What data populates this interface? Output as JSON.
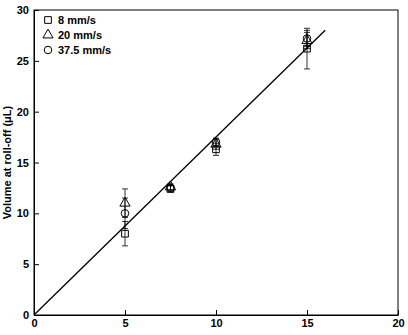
{
  "chart_data": {
    "type": "scatter",
    "y_label": "Volume at roll-off (μL)",
    "xlim": [
      0,
      20
    ],
    "xticks": [
      0,
      5,
      10,
      15,
      20
    ],
    "ylim": [
      0,
      30
    ],
    "yticks": [
      0,
      5,
      10,
      15,
      20,
      25,
      30
    ],
    "legend": "top-left",
    "series": [
      {
        "name": "8 mm/s",
        "color": "#000000",
        "marker": "square",
        "x": [
          5,
          7.5,
          10,
          15
        ],
        "values": [
          8,
          12.4,
          16.3,
          26.2
        ],
        "errors": [
          1.2,
          0.3,
          0.6,
          2.0
        ]
      },
      {
        "name": "20 mm/s",
        "color": "#000000",
        "marker": "triangle",
        "x": [
          5,
          7.5,
          10,
          15
        ],
        "values": [
          11,
          12.6,
          16.8,
          27
        ],
        "errors": [
          1.4,
          0.3,
          0.5,
          0.8
        ]
      },
      {
        "name": "37.5 mm/s",
        "color": "#000000",
        "marker": "circle",
        "x": [
          5,
          7.5,
          10,
          15
        ],
        "values": [
          10,
          12.5,
          17,
          27.2
        ],
        "errors": [
          1.5,
          0.3,
          0.4,
          0.8
        ]
      },
      {
        "type": "line",
        "color": "#000000",
        "line_style": "solid",
        "x": [
          0,
          16
        ],
        "values": [
          0,
          28
        ]
      }
    ]
  }
}
